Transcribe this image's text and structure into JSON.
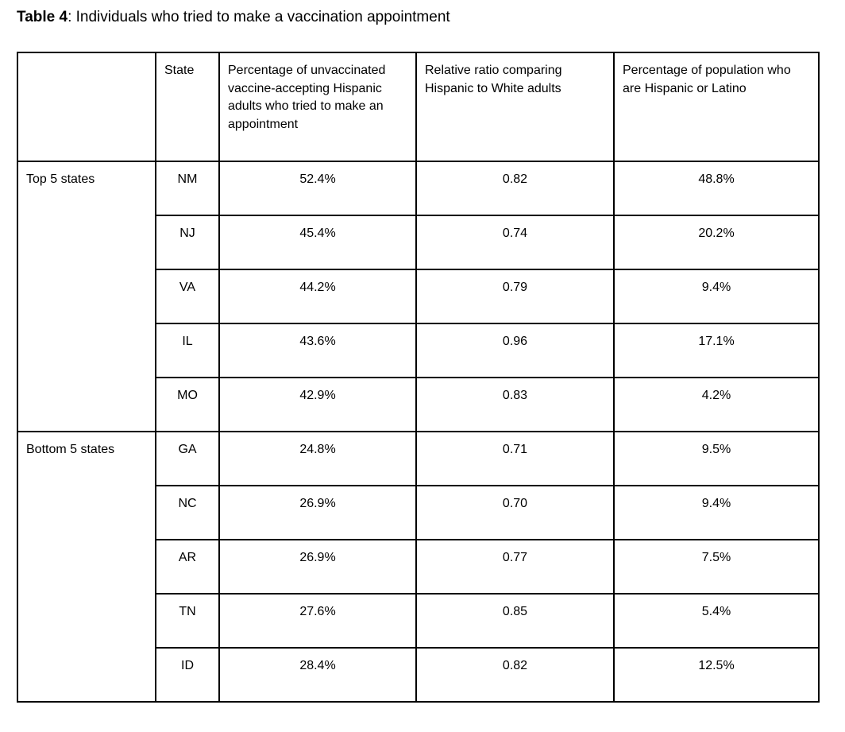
{
  "caption": {
    "label": "Table 4",
    "text": ": Individuals who tried to make a vaccination appointment"
  },
  "table": {
    "columns": [
      "",
      "State",
      "Percentage of unvaccinated vaccine-accepting Hispanic adults who tried to make an appointment",
      "Relative ratio comparing Hispanic to White adults",
      "Percentage of population who are Hispanic or Latino"
    ],
    "groups": [
      {
        "label": "Top 5 states",
        "rows": [
          {
            "state": "NM",
            "pct_tried": "52.4%",
            "ratio": "0.82",
            "pct_hispanic": "48.8%"
          },
          {
            "state": "NJ",
            "pct_tried": "45.4%",
            "ratio": "0.74",
            "pct_hispanic": "20.2%"
          },
          {
            "state": "VA",
            "pct_tried": "44.2%",
            "ratio": "0.79",
            "pct_hispanic": "9.4%"
          },
          {
            "state": "IL",
            "pct_tried": "43.6%",
            "ratio": "0.96",
            "pct_hispanic": "17.1%"
          },
          {
            "state": "MO",
            "pct_tried": "42.9%",
            "ratio": "0.83",
            "pct_hispanic": "4.2%"
          }
        ]
      },
      {
        "label": "Bottom 5 states",
        "rows": [
          {
            "state": "GA",
            "pct_tried": "24.8%",
            "ratio": "0.71",
            "pct_hispanic": "9.5%"
          },
          {
            "state": "NC",
            "pct_tried": "26.9%",
            "ratio": "0.70",
            "pct_hispanic": "9.4%"
          },
          {
            "state": "AR",
            "pct_tried": "26.9%",
            "ratio": "0.77",
            "pct_hispanic": "7.5%"
          },
          {
            "state": "TN",
            "pct_tried": "27.6%",
            "ratio": "0.85",
            "pct_hispanic": "5.4%"
          },
          {
            "state": "ID",
            "pct_tried": "28.4%",
            "ratio": "0.82",
            "pct_hispanic": "12.5%"
          }
        ]
      }
    ]
  }
}
